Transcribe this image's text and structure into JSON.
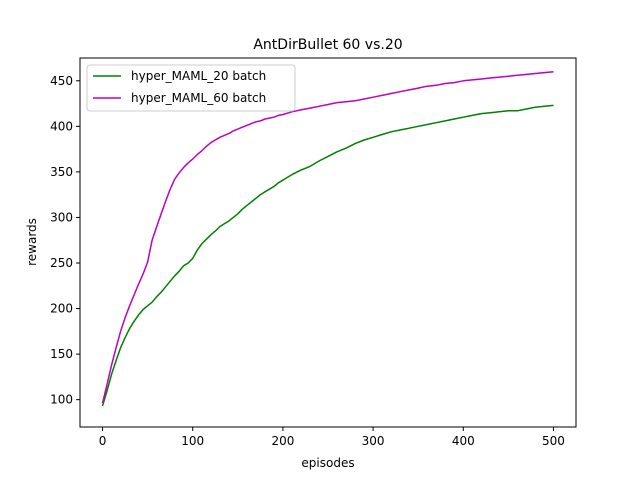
{
  "chart_data": {
    "type": "line",
    "title": "AntDirBullet 60 vs.20",
    "xlabel": "episodes",
    "ylabel": "rewards",
    "xlim": [
      -25,
      525
    ],
    "ylim": [
      70,
      475
    ],
    "xticks": [
      0,
      100,
      200,
      300,
      400,
      500
    ],
    "yticks": [
      100,
      150,
      200,
      250,
      300,
      350,
      400,
      450
    ],
    "grid": false,
    "legend_position": "upper left",
    "series": [
      {
        "name": "hyper_MAML_20 batch",
        "color": "#008000",
        "x": [
          0,
          5,
          10,
          15,
          20,
          25,
          30,
          35,
          40,
          45,
          50,
          55,
          60,
          65,
          70,
          75,
          80,
          85,
          90,
          95,
          100,
          105,
          110,
          115,
          120,
          125,
          130,
          135,
          140,
          145,
          150,
          155,
          160,
          165,
          170,
          175,
          180,
          185,
          190,
          195,
          200,
          210,
          220,
          230,
          240,
          250,
          260,
          270,
          280,
          290,
          300,
          310,
          320,
          330,
          340,
          350,
          360,
          370,
          380,
          390,
          400,
          410,
          420,
          430,
          440,
          450,
          460,
          470,
          480,
          490,
          500
        ],
        "values": [
          93,
          110,
          128,
          143,
          157,
          168,
          178,
          186,
          193,
          199,
          203,
          207,
          213,
          218,
          224,
          230,
          236,
          241,
          247,
          250,
          255,
          264,
          271,
          276,
          281,
          285,
          290,
          293,
          296,
          300,
          304,
          309,
          313,
          317,
          321,
          325,
          328,
          331,
          334,
          338,
          341,
          347,
          352,
          356,
          362,
          367,
          372,
          376,
          381,
          385,
          388,
          391,
          394,
          396,
          398,
          400,
          402,
          404,
          406,
          408,
          410,
          412,
          414,
          415,
          416,
          417,
          417,
          419,
          421,
          422,
          423
        ]
      },
      {
        "name": "hyper_MAML_60 batch",
        "color": "#bf00bf",
        "x": [
          0,
          5,
          10,
          15,
          20,
          25,
          30,
          35,
          40,
          45,
          50,
          55,
          60,
          65,
          70,
          75,
          80,
          85,
          90,
          95,
          100,
          105,
          110,
          115,
          120,
          125,
          130,
          135,
          140,
          145,
          150,
          155,
          160,
          165,
          170,
          175,
          180,
          185,
          190,
          195,
          200,
          210,
          220,
          230,
          240,
          250,
          260,
          270,
          280,
          290,
          300,
          310,
          320,
          330,
          340,
          350,
          360,
          370,
          380,
          390,
          400,
          410,
          420,
          430,
          440,
          450,
          460,
          470,
          480,
          490,
          500
        ],
        "values": [
          96,
          117,
          138,
          157,
          175,
          190,
          203,
          215,
          227,
          238,
          251,
          275,
          290,
          304,
          318,
          331,
          342,
          349,
          355,
          360,
          364,
          369,
          373,
          378,
          382,
          385,
          388,
          390,
          392,
          395,
          397,
          399,
          401,
          403,
          405,
          406,
          408,
          409,
          410,
          412,
          413,
          416,
          418,
          420,
          422,
          424,
          426,
          427,
          428,
          430,
          432,
          434,
          436,
          438,
          440,
          442,
          444,
          445,
          447,
          448,
          450,
          451,
          452,
          453,
          454,
          455,
          456,
          457,
          458,
          459,
          460
        ]
      }
    ]
  }
}
